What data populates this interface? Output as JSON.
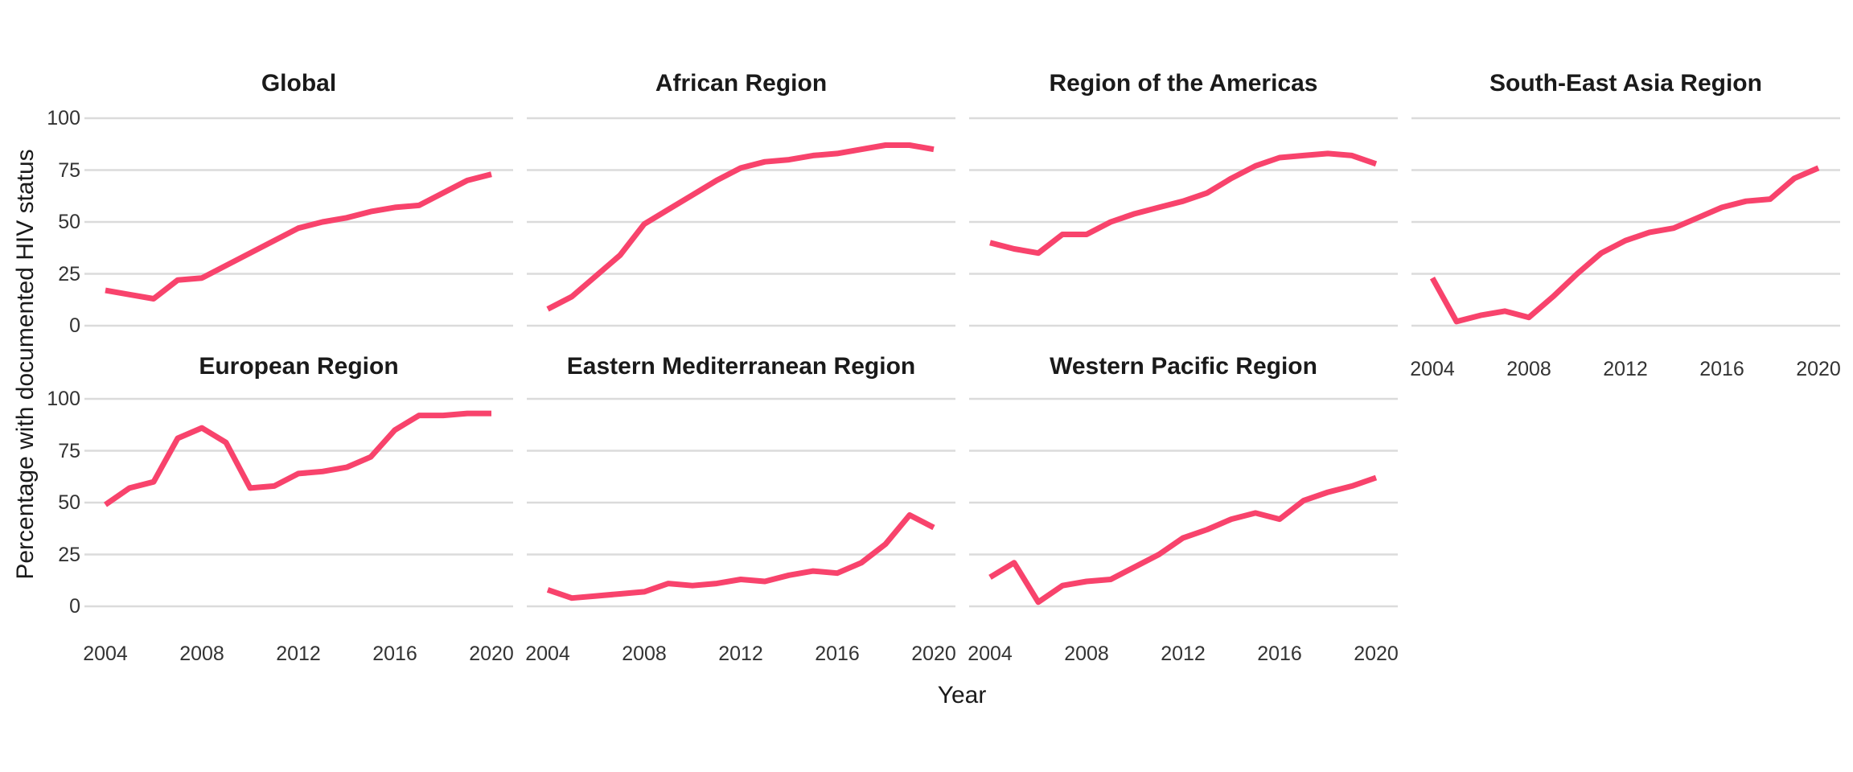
{
  "figure": {
    "x_axis_title": "Year",
    "y_axis_title": "Percentage with documented HIV status",
    "line_color": "#F8436C",
    "gridline_color": "#DBDBDB",
    "title_color": "#1A1A1A",
    "tick_label_color": "#333333",
    "background_color": "#FFFFFF"
  },
  "chart_data": {
    "type": "line",
    "x": [
      2004,
      2005,
      2006,
      2007,
      2008,
      2009,
      2010,
      2011,
      2012,
      2013,
      2014,
      2015,
      2016,
      2017,
      2018,
      2019,
      2020
    ],
    "x_ticks": [
      2004,
      2008,
      2012,
      2016,
      2020
    ],
    "y_ticks": [
      0,
      25,
      50,
      75,
      100
    ],
    "ylim": [
      0,
      100
    ],
    "xlabel": "Year",
    "ylabel": "Percentage with documented HIV status",
    "legend": "none",
    "grid": "horizontal-only",
    "series": [
      {
        "name": "Global",
        "values": [
          17,
          15,
          13,
          22,
          23,
          29,
          35,
          41,
          47,
          50,
          52,
          55,
          57,
          58,
          64,
          70,
          73
        ]
      },
      {
        "name": "African Region",
        "values": [
          8,
          14,
          24,
          34,
          49,
          56,
          63,
          70,
          76,
          79,
          80,
          82,
          83,
          85,
          87,
          87,
          85
        ]
      },
      {
        "name": "Region of the Americas",
        "values": [
          40,
          37,
          35,
          44,
          44,
          50,
          54,
          57,
          60,
          64,
          71,
          77,
          81,
          82,
          83,
          82,
          78
        ]
      },
      {
        "name": "South-East Asia Region",
        "values": [
          23,
          2,
          5,
          7,
          4,
          14,
          25,
          35,
          41,
          45,
          47,
          52,
          57,
          60,
          61,
          71,
          76
        ]
      },
      {
        "name": "European Region",
        "values": [
          49,
          57,
          60,
          81,
          86,
          79,
          57,
          58,
          64,
          65,
          67,
          72,
          85,
          92,
          92,
          93,
          93
        ]
      },
      {
        "name": "Eastern Mediterranean Region",
        "values": [
          8,
          4,
          5,
          6,
          7,
          11,
          10,
          11,
          13,
          12,
          15,
          17,
          16,
          21,
          30,
          44,
          38
        ]
      },
      {
        "name": "Western Pacific Region",
        "values": [
          14,
          21,
          2,
          10,
          12,
          13,
          19,
          25,
          33,
          37,
          42,
          45,
          42,
          51,
          55,
          58,
          62
        ]
      }
    ]
  }
}
